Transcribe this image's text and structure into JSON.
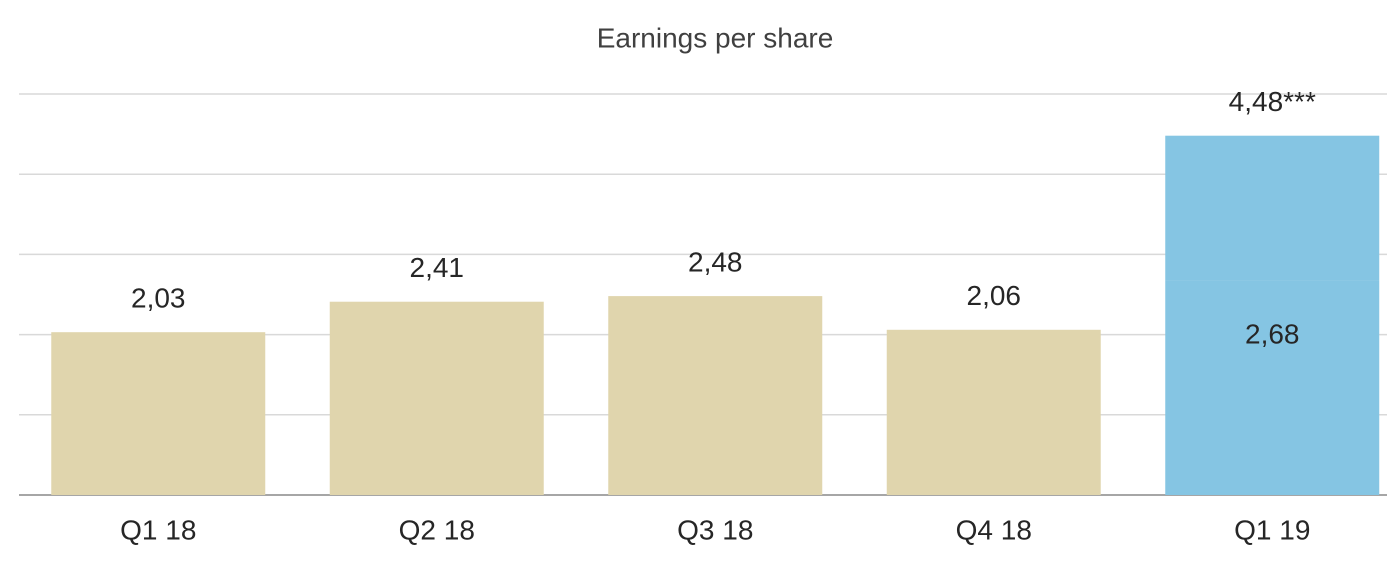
{
  "chart_data": {
    "type": "stacked_bar",
    "title": "Earnings per share",
    "categories": [
      "Q1 18",
      "Q2 18",
      "Q3 18",
      "Q4 18",
      "Q1 19"
    ],
    "series": [
      {
        "colors": [
          "#e0d5ad",
          "#e0d5ad",
          "#e0d5ad",
          "#e0d5ad",
          "#85c5e3"
        ],
        "values": [
          2.03,
          2.41,
          2.48,
          2.06,
          2.68
        ],
        "value_labels": [
          "2,03",
          "2,41",
          "2,48",
          "2,06",
          "2,68"
        ]
      },
      {
        "color": "#85c5e3",
        "pattern": "dotted",
        "values": [
          null,
          null,
          null,
          null,
          1.8
        ]
      }
    ],
    "annotations": [
      {
        "text": "4,48***",
        "value": 4.48,
        "category": "Q1 19"
      }
    ],
    "ylim": [
      0,
      5
    ],
    "yticks": [
      0,
      1,
      2,
      3,
      4,
      5
    ],
    "grid": true
  }
}
